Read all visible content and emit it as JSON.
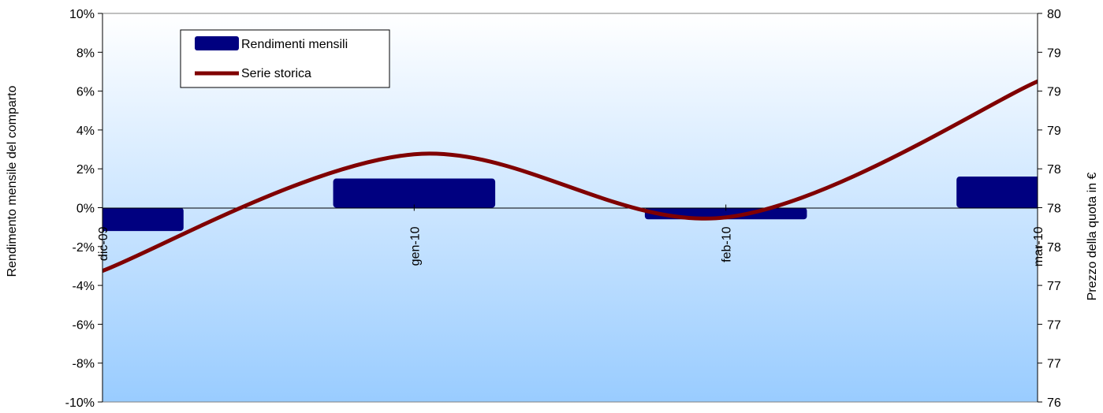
{
  "chart_data": {
    "type": "bar",
    "categories": [
      "dic-09",
      "gen-10",
      "feb-10",
      "mar-10"
    ],
    "series": [
      {
        "name": "Rendimenti mensili",
        "type": "bar",
        "axis": "left",
        "values": [
          -1.2,
          1.5,
          -0.6,
          1.6
        ],
        "color": "#000080"
      },
      {
        "name": "Serie storica",
        "type": "line",
        "axis": "right",
        "values": [
          77.35,
          78.55,
          77.9,
          79.3
        ],
        "color": "#800000"
      }
    ],
    "ylabel": "Rendimento mensile del comparto",
    "ylabel_right": "Prezzo  della quota in €",
    "ylim": [
      -10,
      10
    ],
    "yticks": [
      "-10%",
      "-8%",
      "-6%",
      "-4%",
      "-2%",
      "0%",
      "2%",
      "4%",
      "6%",
      "8%",
      "10%"
    ],
    "ylim_right": [
      76,
      80
    ],
    "yticks_right": [
      "76",
      "77",
      "77",
      "77",
      "78",
      "78",
      "78",
      "79",
      "79",
      "79",
      "80"
    ],
    "legend": "top-left",
    "grid": false,
    "background_gradient": [
      "#ffffff",
      "#99ccff"
    ]
  }
}
